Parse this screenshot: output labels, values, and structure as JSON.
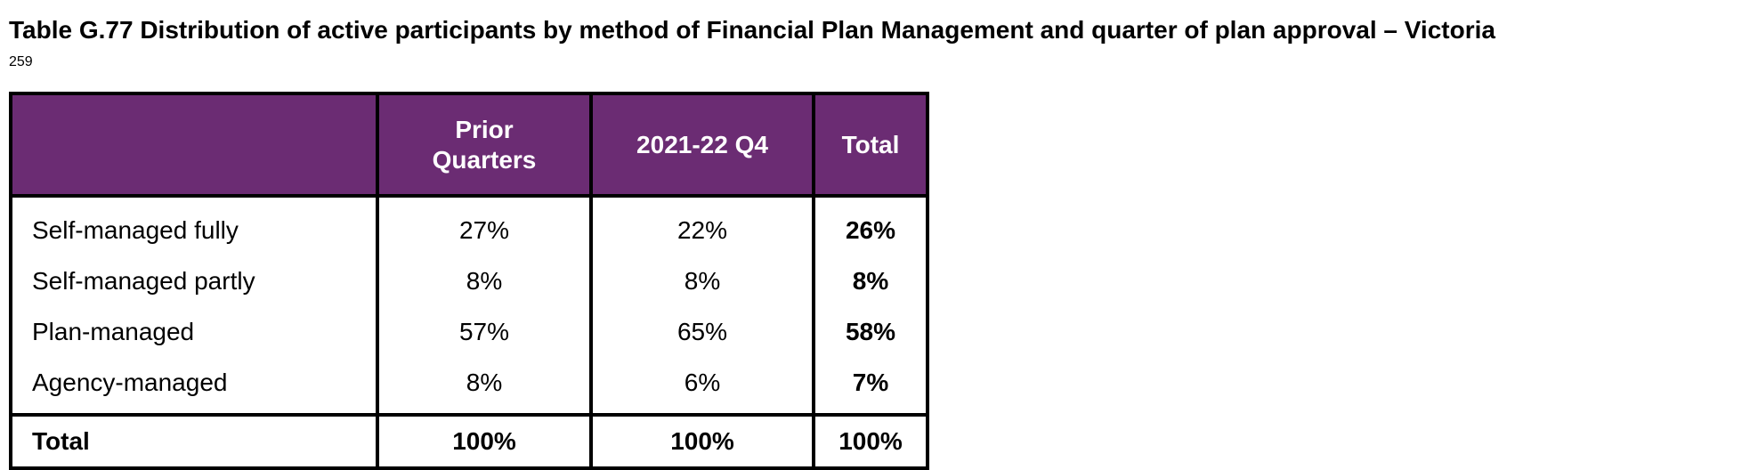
{
  "title": "Table G.77 Distribution of active participants by method of Financial Plan Management and quarter of plan approval – Victoria",
  "page_number": "259",
  "colors": {
    "header_bg": "#6b2c73",
    "header_text": "#ffffff",
    "border": "#000000"
  },
  "table": {
    "headers": [
      "",
      "Prior Quarters",
      "2021-22 Q4",
      "Total"
    ],
    "rows": [
      {
        "label": "Self-managed fully",
        "prior": "27%",
        "q4": "22%",
        "total": "26%"
      },
      {
        "label": "Self-managed partly",
        "prior": "8%",
        "q4": "8%",
        "total": "8%"
      },
      {
        "label": "Plan-managed",
        "prior": "57%",
        "q4": "65%",
        "total": "58%"
      },
      {
        "label": "Agency-managed",
        "prior": "8%",
        "q4": "6%",
        "total": "7%"
      }
    ],
    "total_row": {
      "label": "Total",
      "prior": "100%",
      "q4": "100%",
      "total": "100%"
    }
  }
}
